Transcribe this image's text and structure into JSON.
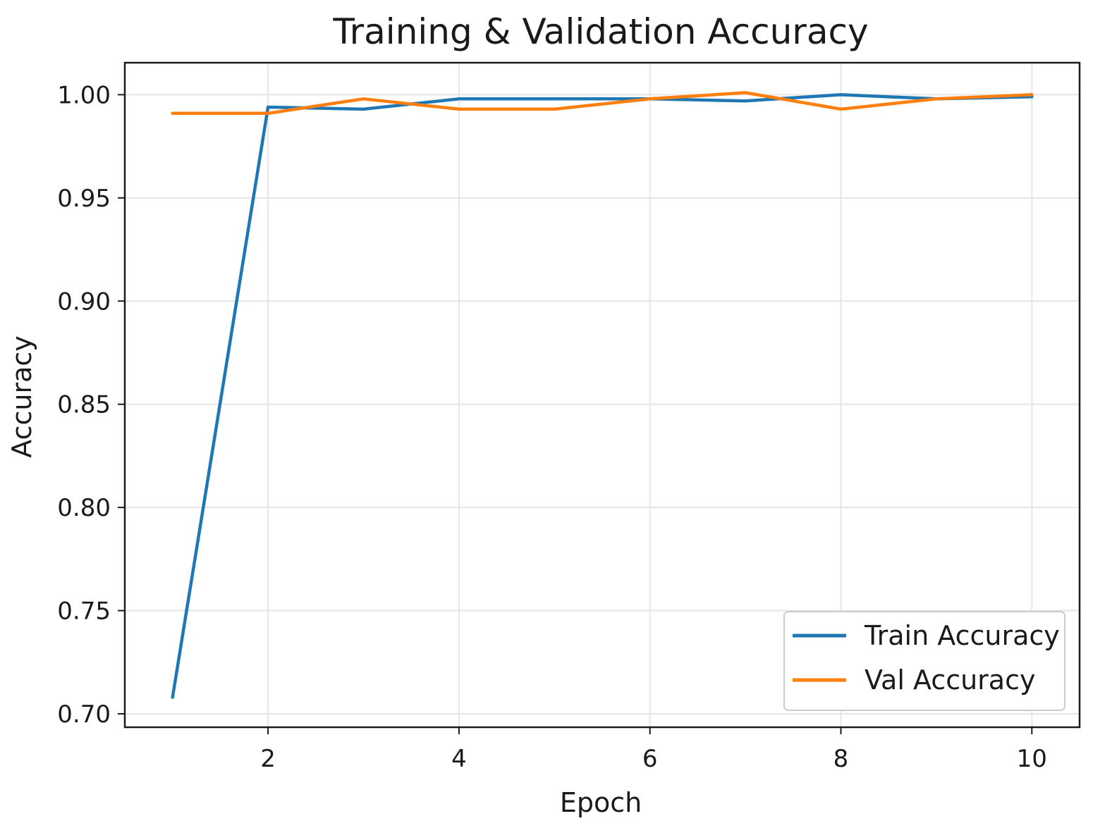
{
  "chart_data": {
    "type": "line",
    "title": "Training & Validation Accuracy",
    "xlabel": "Epoch",
    "ylabel": "Accuracy",
    "x": [
      1,
      2,
      3,
      4,
      5,
      6,
      7,
      8,
      9,
      10
    ],
    "xlim": [
      0.5,
      10.5
    ],
    "ylim": [
      0.6935,
      1.0155
    ],
    "xticks": [
      2,
      4,
      6,
      8,
      10
    ],
    "yticks": [
      0.7,
      0.75,
      0.8,
      0.85,
      0.9,
      0.95,
      1.0
    ],
    "ytick_labels": [
      "0.70",
      "0.75",
      "0.80",
      "0.85",
      "0.90",
      "0.95",
      "1.00"
    ],
    "grid": true,
    "legend": "lower-right",
    "series": [
      {
        "name": "Train Accuracy",
        "color": "#1f77b4",
        "values": [
          0.708,
          0.994,
          0.993,
          0.998,
          0.998,
          0.998,
          0.997,
          1.0,
          0.998,
          0.999
        ]
      },
      {
        "name": "Val Accuracy",
        "color": "#ff7f0e",
        "values": [
          0.991,
          0.991,
          0.998,
          0.993,
          0.993,
          0.998,
          1.001,
          0.993,
          0.998,
          1.0
        ]
      }
    ]
  }
}
